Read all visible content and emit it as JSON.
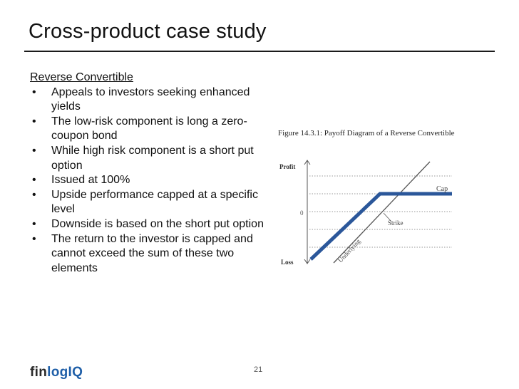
{
  "slide": {
    "title": "Cross-product case study",
    "page_number": "21"
  },
  "content": {
    "subheading": "Reverse Convertible",
    "bullets": [
      "Appeals to investors seeking enhanced yields",
      "The low-risk component is long a zero-coupon bond",
      "While high risk component is a short put option",
      "Issued at 100%",
      "Upside performance capped at a specific level",
      "Downside is based on the short put option",
      "The return to the investor is capped and cannot exceed the sum of these two elements"
    ]
  },
  "figure": {
    "caption": "Figure 14.3.1: Payoff Diagram of a Reverse Convertible",
    "profit_label": "Profit",
    "loss_label": "Loss",
    "zero_label": "0",
    "cap_label": "Cap",
    "strike_label": "Strike",
    "underlying_label": "Underlying",
    "payoff_color": "#2b579a"
  },
  "logo": {
    "part1": "fin",
    "part2": "log",
    "part3": "IQ"
  }
}
